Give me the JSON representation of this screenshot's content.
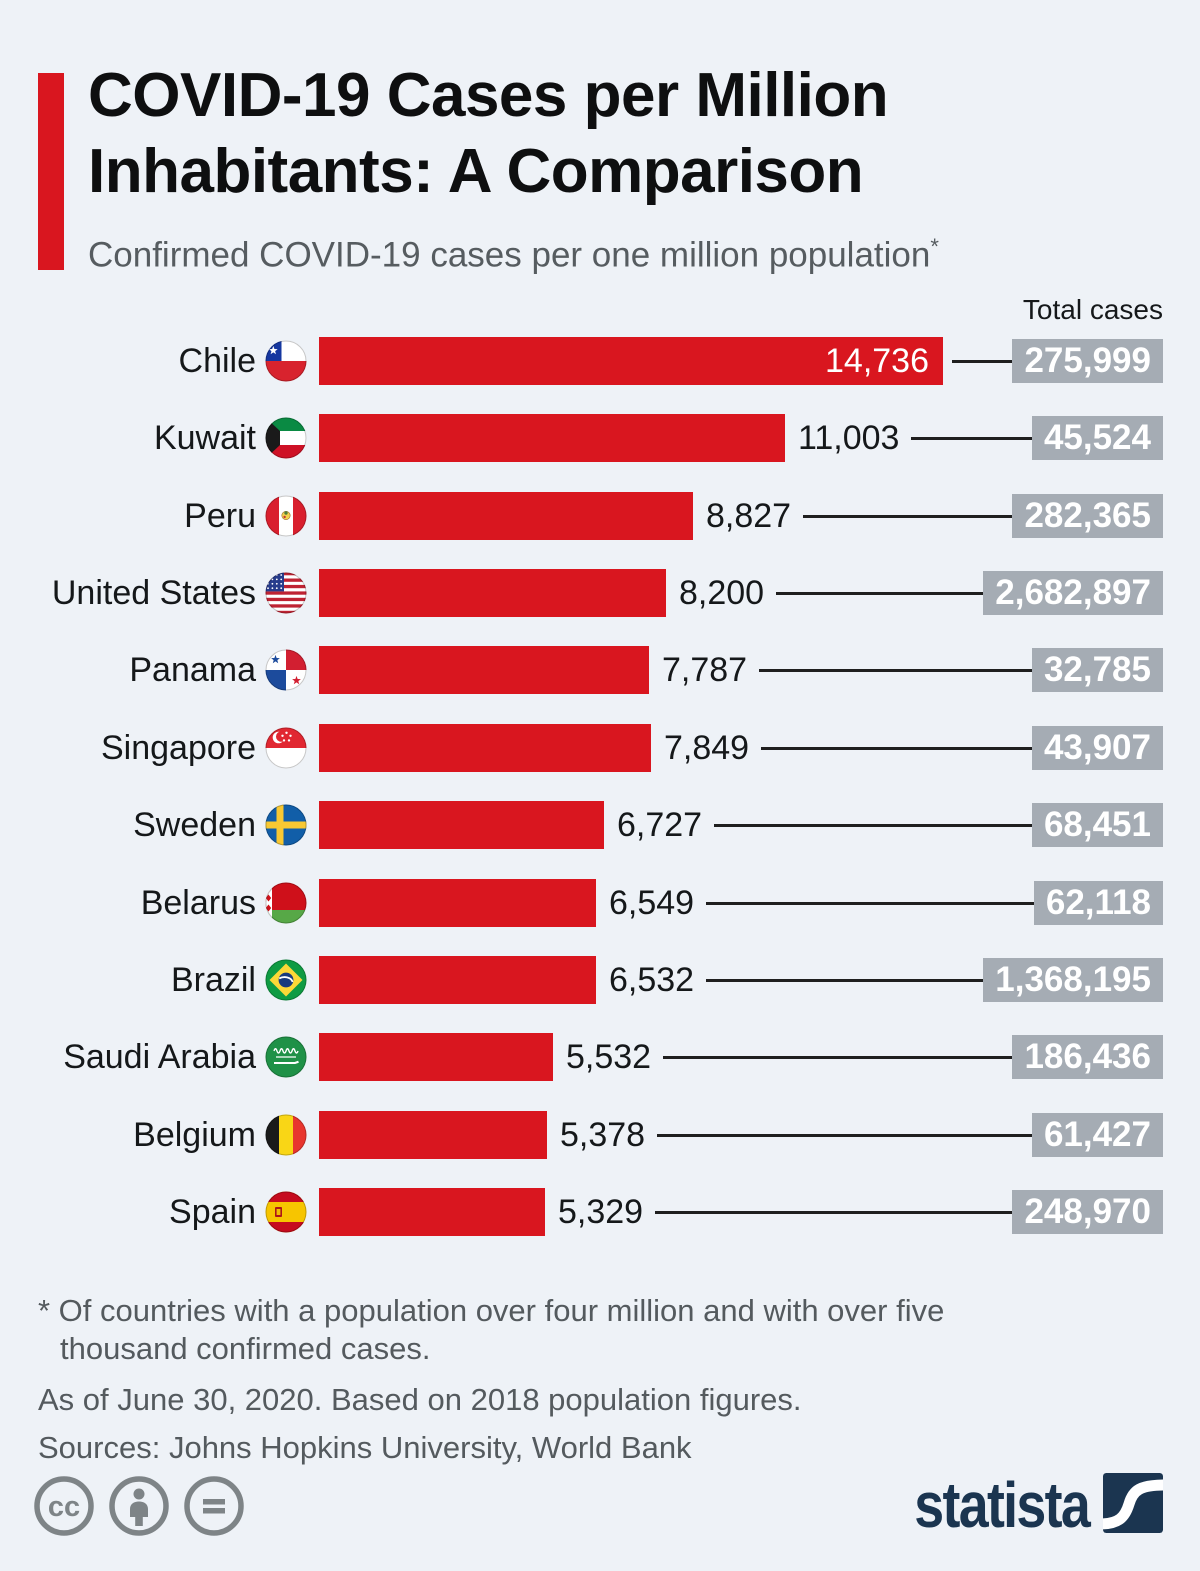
{
  "theme": {
    "background": "#eef2f7",
    "bar_red": "#d9161f",
    "box_gray": "#a5acb4",
    "connector": "#1f1f1f",
    "text_dark": "#15181a",
    "text_gray": "#545a5e",
    "logo_navy": "#1b3550",
    "icon_gray": "#7e8487"
  },
  "header": {
    "title": "COVID-19 Cases per Million Inhabitants: A Comparison",
    "subtitle": "Confirmed COVID-19 cases per one million population",
    "subtitle_mark": "*"
  },
  "chart_data": {
    "type": "bar",
    "orientation": "horizontal",
    "title": "COVID-19 Cases per Million Inhabitants: A Comparison",
    "subtitle": "Confirmed COVID-19 cases per one million population*",
    "value_column_label": "Total cases",
    "xlim": [
      0,
      14736
    ],
    "grid": false,
    "rows": [
      {
        "country": "Chile",
        "flag": "chile",
        "cases_per_million": 14736,
        "cases_per_million_label": "14,736",
        "total_cases": 275999,
        "total_cases_label": "275,999",
        "value_label_inside": true
      },
      {
        "country": "Kuwait",
        "flag": "kuwait",
        "cases_per_million": 11003,
        "cases_per_million_label": "11,003",
        "total_cases": 45524,
        "total_cases_label": "45,524",
        "value_label_inside": false
      },
      {
        "country": "Peru",
        "flag": "peru",
        "cases_per_million": 8827,
        "cases_per_million_label": "8,827",
        "total_cases": 282365,
        "total_cases_label": "282,365",
        "value_label_inside": false
      },
      {
        "country": "United States",
        "flag": "united-states",
        "cases_per_million": 8200,
        "cases_per_million_label": "8,200",
        "total_cases": 2682897,
        "total_cases_label": "2,682,897",
        "value_label_inside": false
      },
      {
        "country": "Panama",
        "flag": "panama",
        "cases_per_million": 7787,
        "cases_per_million_label": "7,787",
        "total_cases": 32785,
        "total_cases_label": "32,785",
        "value_label_inside": false
      },
      {
        "country": "Singapore",
        "flag": "singapore",
        "cases_per_million": 7849,
        "cases_per_million_label": "7,849",
        "total_cases": 43907,
        "total_cases_label": "43,907",
        "value_label_inside": false
      },
      {
        "country": "Sweden",
        "flag": "sweden",
        "cases_per_million": 6727,
        "cases_per_million_label": "6,727",
        "total_cases": 68451,
        "total_cases_label": "68,451",
        "value_label_inside": false
      },
      {
        "country": "Belarus",
        "flag": "belarus",
        "cases_per_million": 6549,
        "cases_per_million_label": "6,549",
        "total_cases": 62118,
        "total_cases_label": "62,118",
        "value_label_inside": false
      },
      {
        "country": "Brazil",
        "flag": "brazil",
        "cases_per_million": 6532,
        "cases_per_million_label": "6,532",
        "total_cases": 1368195,
        "total_cases_label": "1,368,195",
        "value_label_inside": false
      },
      {
        "country": "Saudi Arabia",
        "flag": "saudi-arabia",
        "cases_per_million": 5532,
        "cases_per_million_label": "5,532",
        "total_cases": 186436,
        "total_cases_label": "186,436",
        "value_label_inside": false
      },
      {
        "country": "Belgium",
        "flag": "belgium",
        "cases_per_million": 5378,
        "cases_per_million_label": "5,378",
        "total_cases": 61427,
        "total_cases_label": "61,427",
        "value_label_inside": false
      },
      {
        "country": "Spain",
        "flag": "spain",
        "cases_per_million": 5329,
        "cases_per_million_label": "5,329",
        "total_cases": 248970,
        "total_cases_label": "248,970",
        "value_label_inside": false
      }
    ]
  },
  "footer": {
    "footnote": "* Of countries with a population over four million and with over five thousand confirmed cases.",
    "note": "As of June 30, 2020. Based on 2018 population figures.",
    "sources": "Sources: Johns Hopkins University, World Bank"
  },
  "branding": {
    "logo_text": "statista",
    "license_icons": [
      "cc",
      "attribution",
      "no-derivatives"
    ]
  }
}
